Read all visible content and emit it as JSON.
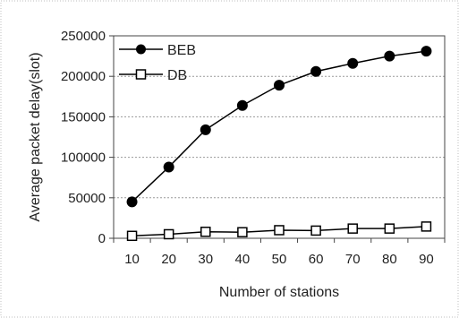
{
  "chart_data": {
    "type": "line",
    "title": "",
    "xlabel": "Number of stations",
    "ylabel": "Average packet delay(slot)",
    "categories": [
      "10",
      "20",
      "30",
      "40",
      "50",
      "60",
      "70",
      "80",
      "90"
    ],
    "x": [
      10,
      20,
      30,
      40,
      50,
      60,
      70,
      80,
      90
    ],
    "ylim": [
      0,
      250000
    ],
    "yticks": [
      0,
      50000,
      100000,
      150000,
      200000,
      250000
    ],
    "ytick_labels": [
      "0",
      "50000",
      "100000",
      "150000",
      "200000",
      "250000"
    ],
    "grid": "horizontal dashed",
    "legend_position": "top-left",
    "series": [
      {
        "name": "BEB",
        "marker": "filled-circle",
        "color": "#000000",
        "values": [
          45000,
          88000,
          134000,
          164000,
          189000,
          206000,
          216000,
          225000,
          231000
        ]
      },
      {
        "name": "DB",
        "marker": "open-square",
        "color": "#000000",
        "values": [
          3000,
          5000,
          8000,
          7500,
          10000,
          9500,
          12000,
          12000,
          14500
        ]
      }
    ]
  }
}
